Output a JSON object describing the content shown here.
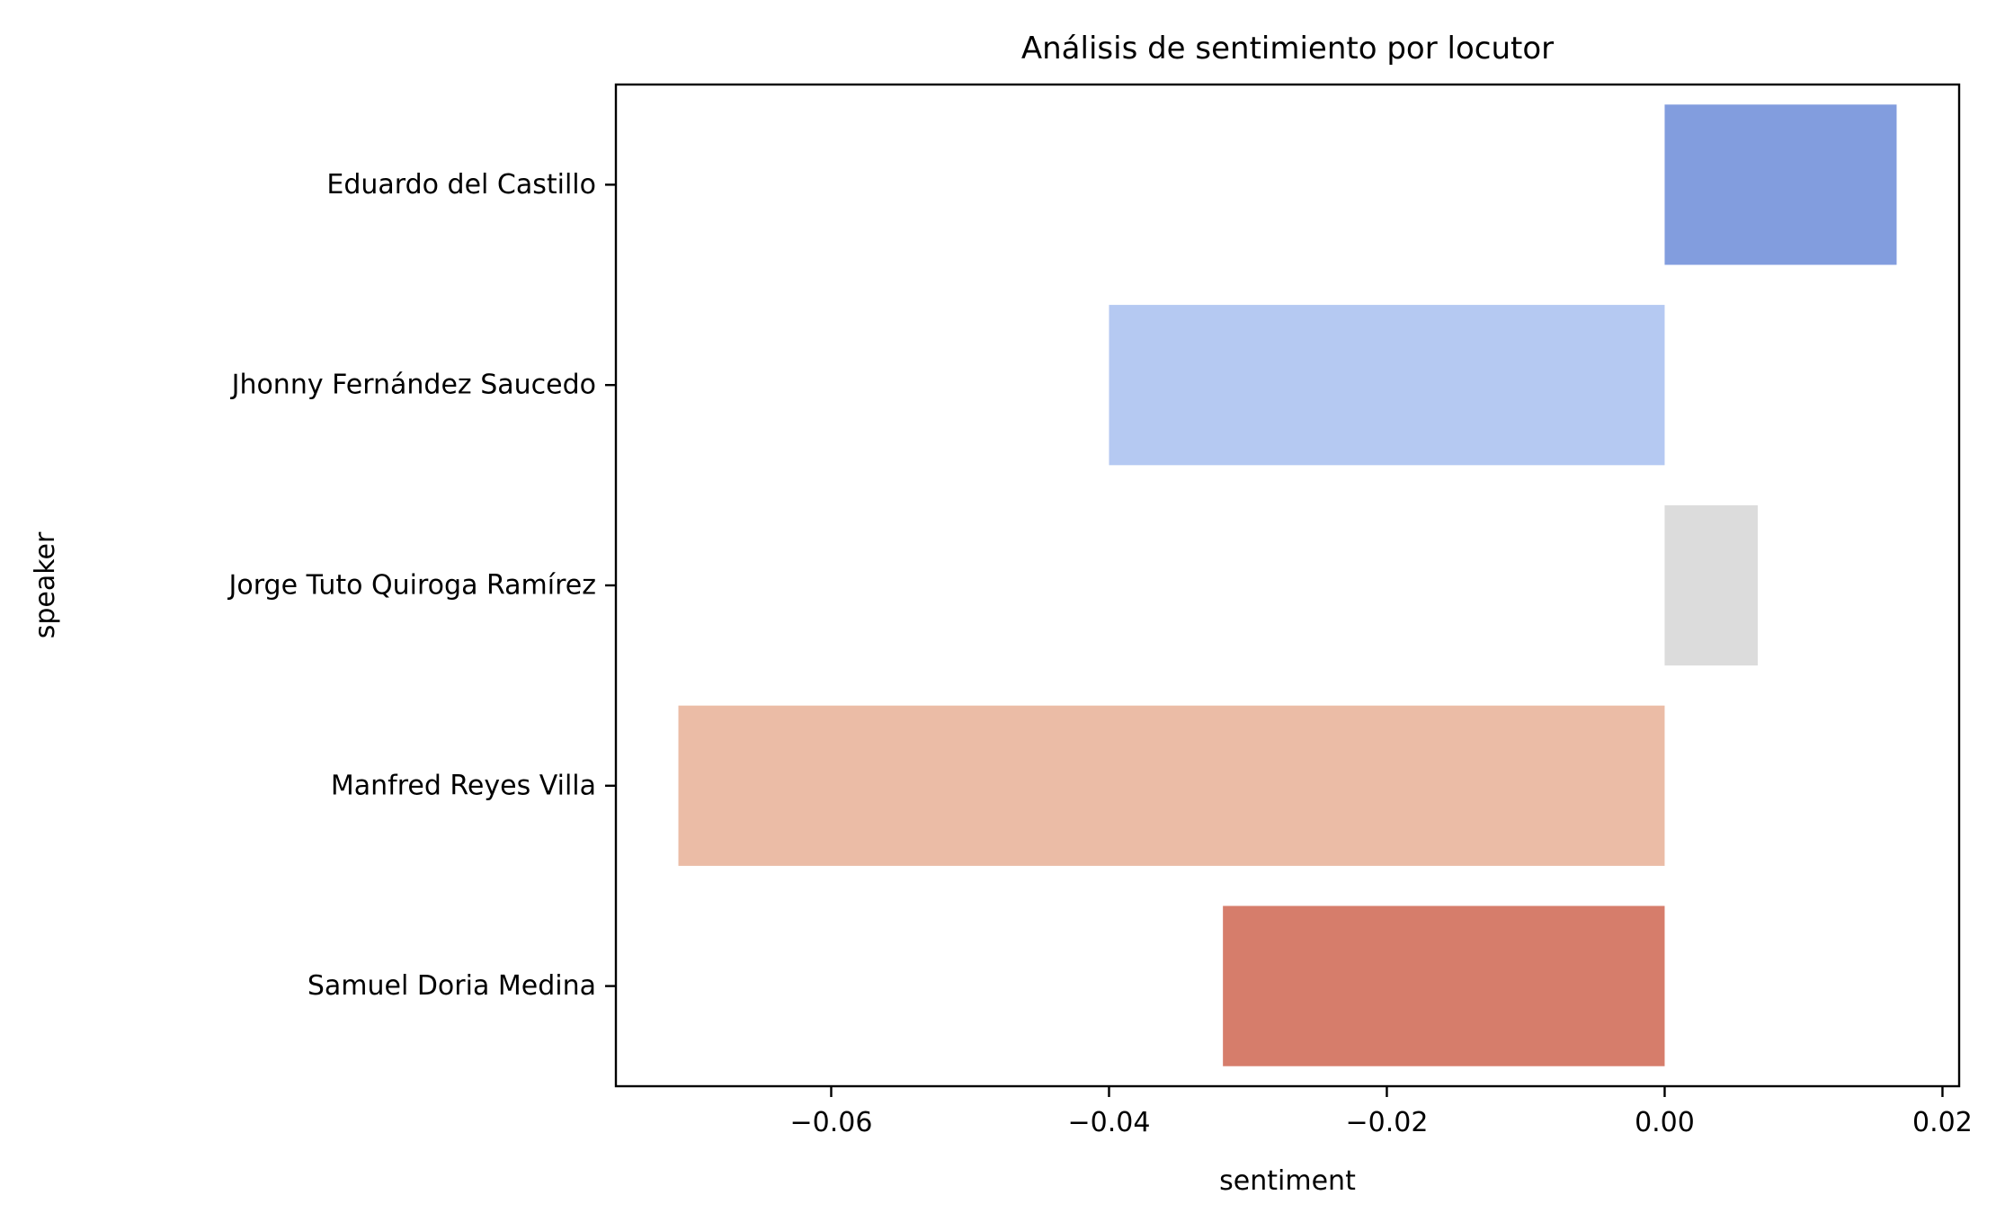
{
  "chart_data": {
    "type": "bar",
    "orientation": "horizontal",
    "title": "Análisis de sentimiento por locutor",
    "xlabel": "sentiment",
    "ylabel": "speaker",
    "categories": [
      "Eduardo del Castillo",
      "Jhonny Fernández Saucedo",
      "Jorge Tuto Quiroga Ramírez",
      "Manfred Reyes Villa",
      "Samuel Doria Medina"
    ],
    "values": [
      0.0167,
      -0.04,
      0.0067,
      -0.071,
      -0.0318
    ],
    "colors": [
      "#829dde",
      "#b5c9f2",
      "#dcdcdc",
      "#ebbca6",
      "#d67d6b"
    ],
    "xlim": [
      -0.0755,
      0.0212
    ],
    "xticks": [
      -0.06,
      -0.04,
      -0.02,
      0.0,
      0.02
    ],
    "xtick_labels": [
      "−0.06",
      "−0.04",
      "−0.02",
      "0.00",
      "0.02"
    ],
    "grid": false,
    "legend": "none"
  }
}
